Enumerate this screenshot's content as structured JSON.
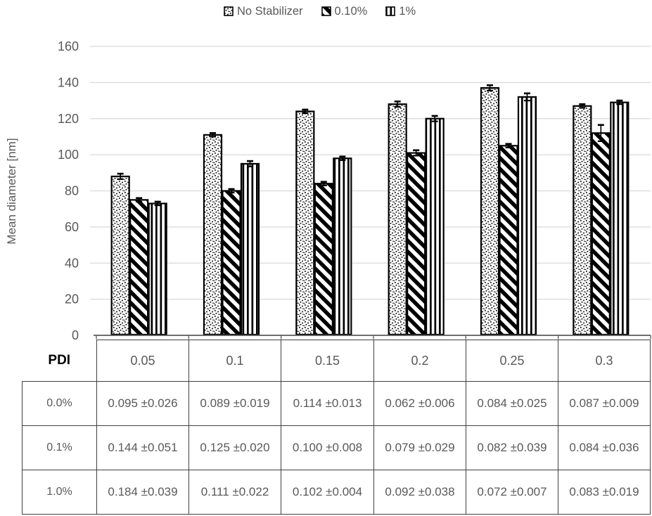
{
  "chart_data": {
    "type": "bar",
    "title": "",
    "xlabel": "",
    "ylabel": "Mean diameter [nm]",
    "ylim": [
      0,
      160
    ],
    "yticks": [
      0,
      20,
      40,
      60,
      80,
      100,
      120,
      140,
      160
    ],
    "grid": true,
    "legend_position": "top",
    "categories": [
      "0.05",
      "0.1",
      "0.15",
      "0.2",
      "0.25",
      "0.3"
    ],
    "series": [
      {
        "name": "No Stabilizer",
        "pattern": "dots-pattern",
        "values": [
          88,
          111,
          124,
          128,
          137,
          127
        ],
        "errors": [
          1.5,
          1,
          1,
          1.5,
          1.5,
          1
        ]
      },
      {
        "name": "0.10%",
        "pattern": "diagonal-stripes-pattern",
        "values": [
          75,
          80,
          84,
          101,
          105,
          112
        ],
        "errors": [
          1,
          1,
          1,
          1.5,
          1,
          4.5
        ]
      },
      {
        "name": "1%",
        "pattern": "vertical-stripes-pattern",
        "values": [
          73,
          95,
          98,
          120,
          132,
          129
        ],
        "errors": [
          1,
          1.5,
          1,
          1.5,
          2,
          1
        ]
      }
    ]
  },
  "table": {
    "header_label": "PDI",
    "columns": [
      "0.05",
      "0.1",
      "0.15",
      "0.2",
      "0.25",
      "0.3"
    ],
    "rows": [
      {
        "label": "0.0%",
        "cells": [
          "0.095 ±0.026",
          "0.089 ±0.019",
          "0.114 ±0.013",
          "0.062 ±0.006",
          "0.084 ±0.025",
          "0.087 ±0.009"
        ]
      },
      {
        "label": "0.1%",
        "cells": [
          "0.144 ±0.051",
          "0.125 ±0.020",
          "0.100 ±0.008",
          "0.079 ±0.029",
          "0.082 ±0.039",
          "0.084 ±0.036"
        ]
      },
      {
        "label": "1.0%",
        "cells": [
          "0.184 ±0.039",
          "0.111 ±0.022",
          "0.102 ±0.004",
          "0.092 ±0.038",
          "0.072 ±0.007",
          "0.083 ±0.019"
        ]
      }
    ]
  },
  "colors": {
    "axis_text": "#595959",
    "gridline": "#d9d9d9",
    "baseline": "#595959",
    "bar_stroke": "#000000",
    "table_border": "#404040",
    "table_text": "#595959"
  }
}
